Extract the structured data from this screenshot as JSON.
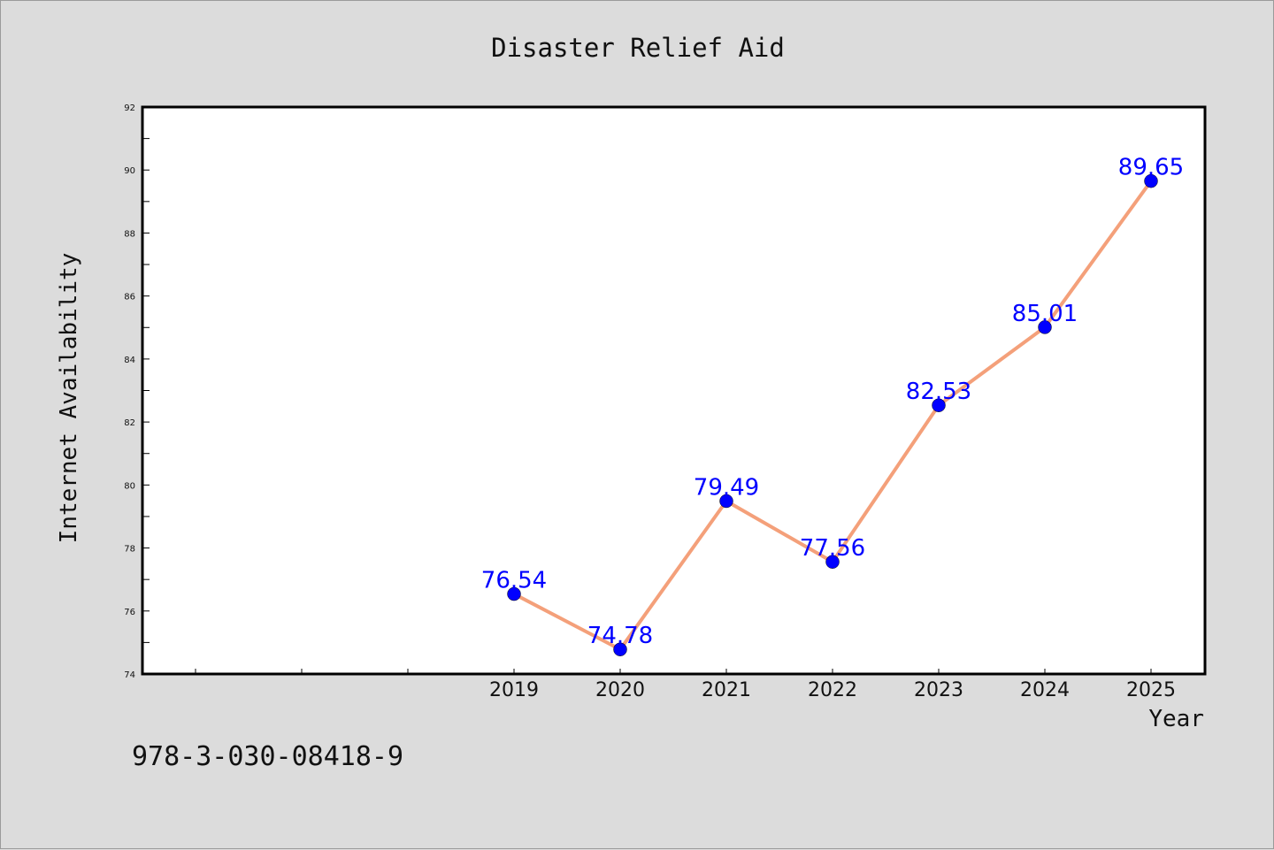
{
  "chart_data": {
    "type": "line",
    "title": "Disaster Relief Aid",
    "xlabel": "Year",
    "ylabel": "Internet Availability",
    "categories": [
      "2019",
      "2020",
      "2021",
      "2022",
      "2023",
      "2024",
      "2025"
    ],
    "values": [
      76.54,
      74.78,
      79.49,
      77.56,
      82.53,
      85.01,
      89.65
    ],
    "data_labels": [
      "76.54",
      "74.78",
      "79.49",
      "77.56",
      "82.53",
      "85.01",
      "89.65"
    ],
    "yticks": [
      "74",
      "76",
      "78",
      "80",
      "82",
      "84",
      "86",
      "88",
      "90",
      "92"
    ],
    "ylim": [
      74,
      92
    ],
    "grid": false,
    "line_color": "#f4a07a",
    "marker_color": "#0000ff",
    "label_color": "#0000ff"
  },
  "footnote": "978-3-030-08418-9"
}
